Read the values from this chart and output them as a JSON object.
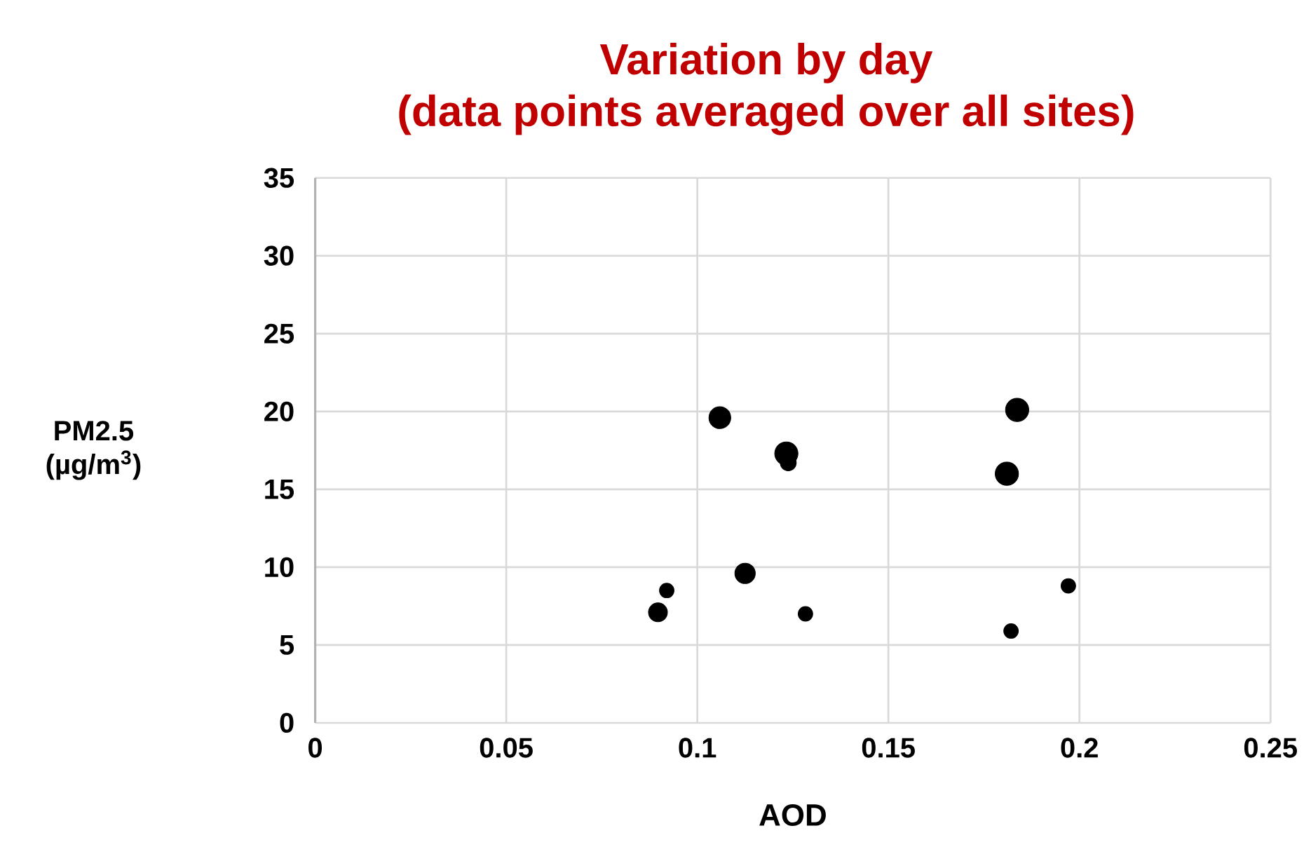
{
  "chart_data": {
    "type": "bubble",
    "title": "Variation by day",
    "subtitle": "(data points averaged over all sites)",
    "xlabel": "AOD",
    "ylabel": "PM2.5 (µg/m$^{3}$)",
    "x": [
      0.1059,
      0.1233,
      0.1238,
      0.1125,
      0.092,
      0.0897,
      0.1283,
      0.1837,
      0.181,
      0.1971,
      0.1821
    ],
    "values": [
      19.6,
      17.3,
      16.7,
      9.6,
      8.5,
      7.1,
      7.0,
      20.1,
      16.0,
      8.8,
      5.9
    ],
    "sizes": [
      0.88,
      1,
      0.47,
      0.77,
      0.39,
      0.66,
      0.39,
      1,
      1,
      0.39,
      0.39
    ],
    "color": "#000000",
    "xlim": [
      0,
      0.25
    ],
    "xticks": [
      0,
      0.05,
      0.1,
      0.15,
      0.2,
      0.25
    ],
    "ylim": [
      0,
      35
    ],
    "yticks": [
      0,
      5,
      10,
      15,
      20,
      25,
      30,
      35
    ],
    "grid": true
  }
}
